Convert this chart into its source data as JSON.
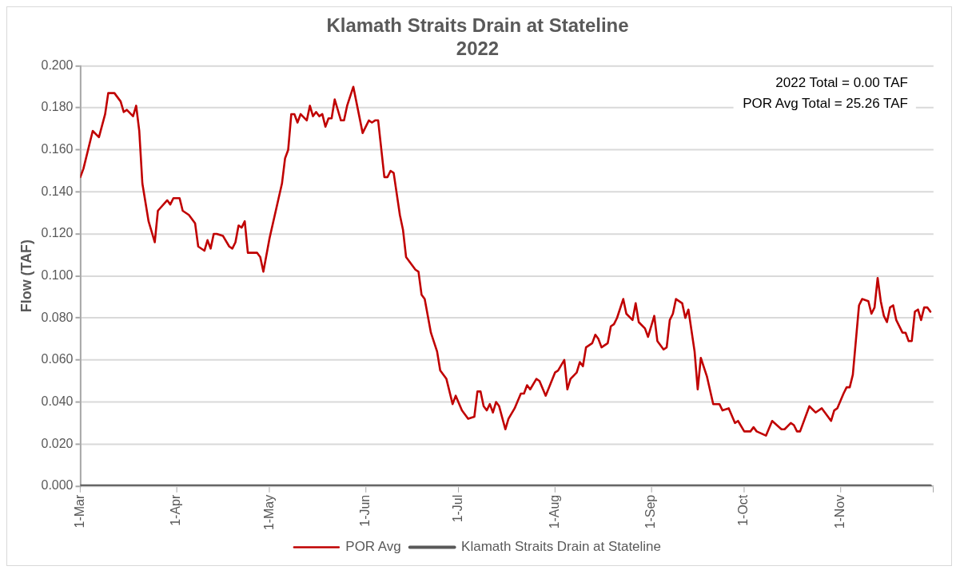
{
  "chart_data": {
    "type": "line",
    "title": "Klamath Straits Drain at Stateline\n2022",
    "ylabel": "Flow (TAF)",
    "xlim": [
      "--03-01",
      "--12-01"
    ],
    "xticks": [
      {
        "value": "--03-01",
        "label": "1-Mar"
      },
      {
        "value": "--04-01",
        "label": "1-Apr"
      },
      {
        "value": "--05-01",
        "label": "1-May"
      },
      {
        "value": "--06-01",
        "label": "1-Jun"
      },
      {
        "value": "--07-01",
        "label": "1-Jul"
      },
      {
        "value": "--08-01",
        "label": "1-Aug"
      },
      {
        "value": "--09-01",
        "label": "1-Sep"
      },
      {
        "value": "--10-01",
        "label": "1-Oct"
      },
      {
        "value": "--11-01",
        "label": "1-Nov"
      },
      {
        "value": "--12-01",
        "label": null
      }
    ],
    "ylim": [
      0,
      0.2
    ],
    "yticks": [
      {
        "value": 0,
        "label": "0.000"
      },
      {
        "value": 0.02,
        "label": "0.020"
      },
      {
        "value": 0.04,
        "label": "0.040"
      },
      {
        "value": 0.06,
        "label": "0.060"
      },
      {
        "value": 0.08,
        "label": "0.080"
      },
      {
        "value": 0.1,
        "label": "0.100"
      },
      {
        "value": 0.12,
        "label": "0.120"
      },
      {
        "value": 0.14,
        "label": "0.140"
      },
      {
        "value": 0.16,
        "label": "0.160"
      },
      {
        "value": 0.18,
        "label": "0.180"
      },
      {
        "value": 0.2,
        "label": "0.200"
      }
    ],
    "grid": "y",
    "legend": "bottom",
    "marker": "none",
    "line_style": "solid",
    "annotations": [
      "2022 Total = 0.00 TAF",
      "POR Avg Total = 25.26 TAF"
    ],
    "series": [
      {
        "name": "POR Avg",
        "color": "#c00000",
        "x": [
          "--03-01",
          "--03-02",
          "--03-05",
          "--03-07",
          "--03-09",
          "--03-10",
          "--03-12",
          "--03-13",
          "--03-14",
          "--03-15",
          "--03-16",
          "--03-18",
          "--03-19",
          "--03-20",
          "--03-21",
          "--03-23",
          "--03-25",
          "--03-26",
          "--03-29",
          "--03-30",
          "--03-31",
          "--04-02",
          "--04-03",
          "--04-05",
          "--04-07",
          "--04-08",
          "--04-10",
          "--04-11",
          "--04-12",
          "--04-13",
          "--04-14",
          "--04-16",
          "--04-18",
          "--04-19",
          "--04-20",
          "--04-21",
          "--04-22",
          "--04-23",
          "--04-24",
          "--04-27",
          "--04-28",
          "--04-29",
          "--05-01",
          "--05-05",
          "--05-06",
          "--05-07",
          "--05-08",
          "--05-09",
          "--05-10",
          "--05-11",
          "--05-13",
          "--05-14",
          "--05-15",
          "--05-16",
          "--05-17",
          "--05-18",
          "--05-19",
          "--05-20",
          "--05-21",
          "--05-22",
          "--05-24",
          "--05-25",
          "--05-26",
          "--05-28",
          "--05-31",
          "--06-02",
          "--06-03",
          "--06-04",
          "--06-05",
          "--06-07",
          "--06-08",
          "--06-09",
          "--06-10",
          "--06-12",
          "--06-13",
          "--06-14",
          "--06-15",
          "--06-17",
          "--06-18",
          "--06-19",
          "--06-20",
          "--06-22",
          "--06-24",
          "--06-25",
          "--06-27",
          "--06-29",
          "--06-30",
          "--07-02",
          "--07-04",
          "--07-06",
          "--07-07",
          "--07-08",
          "--07-09",
          "--07-10",
          "--07-11",
          "--07-12",
          "--07-13",
          "--07-14",
          "--07-16",
          "--07-17",
          "--07-19",
          "--07-21",
          "--07-22",
          "--07-23",
          "--07-24",
          "--07-26",
          "--07-27",
          "--07-29",
          "--08-01",
          "--08-02",
          "--08-04",
          "--08-05",
          "--08-06",
          "--08-08",
          "--08-09",
          "--08-10",
          "--08-11",
          "--08-13",
          "--08-14",
          "--08-15",
          "--08-16",
          "--08-18",
          "--08-19",
          "--08-20",
          "--08-21",
          "--08-23",
          "--08-24",
          "--08-26",
          "--08-27",
          "--08-28",
          "--08-30",
          "--08-31",
          "--09-02",
          "--09-03",
          "--09-05",
          "--09-06",
          "--09-07",
          "--09-08",
          "--09-09",
          "--09-11",
          "--09-12",
          "--09-13",
          "--09-15",
          "--09-16",
          "--09-17",
          "--09-19",
          "--09-21",
          "--09-23",
          "--09-24",
          "--09-26",
          "--09-28",
          "--09-29",
          "--10-01",
          "--10-03",
          "--10-04",
          "--10-05",
          "--10-08",
          "--10-10",
          "--10-13",
          "--10-14",
          "--10-16",
          "--10-17",
          "--10-18",
          "--10-19",
          "--10-22",
          "--10-24",
          "--10-26",
          "--10-27",
          "--10-29",
          "--10-30",
          "--10-31",
          "--11-02",
          "--11-03",
          "--11-04",
          "--11-05",
          "--11-07",
          "--11-08",
          "--11-10",
          "--11-11",
          "--11-12",
          "--11-13",
          "--11-14",
          "--11-15",
          "--11-16",
          "--11-17",
          "--11-18",
          "--11-19",
          "--11-21",
          "--11-22",
          "--11-23",
          "--11-24",
          "--11-25",
          "--11-26",
          "--11-27",
          "--11-28",
          "--11-29",
          "--11-30"
        ],
        "values": [
          0.147,
          0.151,
          0.169,
          0.166,
          0.177,
          0.187,
          0.187,
          0.185,
          0.183,
          0.178,
          0.179,
          0.176,
          0.181,
          0.169,
          0.144,
          0.126,
          0.116,
          0.131,
          0.136,
          0.134,
          0.137,
          0.137,
          0.131,
          0.129,
          0.125,
          0.114,
          0.112,
          0.117,
          0.113,
          0.12,
          0.12,
          0.119,
          0.114,
          0.113,
          0.116,
          0.124,
          0.123,
          0.126,
          0.111,
          0.111,
          0.109,
          0.102,
          0.118,
          0.144,
          0.156,
          0.16,
          0.177,
          0.177,
          0.173,
          0.177,
          0.174,
          0.181,
          0.176,
          0.178,
          0.176,
          0.177,
          0.171,
          0.175,
          0.175,
          0.184,
          0.174,
          0.174,
          0.181,
          0.19,
          0.168,
          0.174,
          0.173,
          0.174,
          0.174,
          0.147,
          0.147,
          0.15,
          0.149,
          0.129,
          0.122,
          0.109,
          0.107,
          0.103,
          0.102,
          0.091,
          0.089,
          0.073,
          0.064,
          0.055,
          0.051,
          0.039,
          0.043,
          0.036,
          0.032,
          0.033,
          0.045,
          0.045,
          0.038,
          0.036,
          0.039,
          0.035,
          0.04,
          0.038,
          0.027,
          0.032,
          0.037,
          0.044,
          0.044,
          0.048,
          0.046,
          0.051,
          0.05,
          0.043,
          0.054,
          0.055,
          0.06,
          0.046,
          0.051,
          0.054,
          0.059,
          0.057,
          0.066,
          0.068,
          0.072,
          0.07,
          0.066,
          0.068,
          0.076,
          0.077,
          0.08,
          0.089,
          0.082,
          0.079,
          0.087,
          0.078,
          0.075,
          0.071,
          0.081,
          0.069,
          0.065,
          0.066,
          0.079,
          0.082,
          0.089,
          0.087,
          0.08,
          0.084,
          0.064,
          0.046,
          0.061,
          0.052,
          0.039,
          0.039,
          0.036,
          0.037,
          0.03,
          0.031,
          0.026,
          0.026,
          0.028,
          0.026,
          0.024,
          0.031,
          0.027,
          0.027,
          0.03,
          0.029,
          0.026,
          0.026,
          0.038,
          0.035,
          0.037,
          0.035,
          0.031,
          0.036,
          0.037,
          0.044,
          0.047,
          0.047,
          0.053,
          0.086,
          0.089,
          0.088,
          0.082,
          0.085,
          0.099,
          0.088,
          0.081,
          0.078,
          0.085,
          0.086,
          0.079,
          0.073,
          0.073,
          0.069,
          0.069,
          0.083,
          0.084,
          0.079,
          0.085,
          0.085,
          0.083
        ]
      },
      {
        "name": "Klamath Straits Drain at Stateline",
        "color": "#595959",
        "x": [
          "--03-01",
          "--11-30"
        ],
        "values": [
          0,
          0
        ]
      }
    ]
  }
}
